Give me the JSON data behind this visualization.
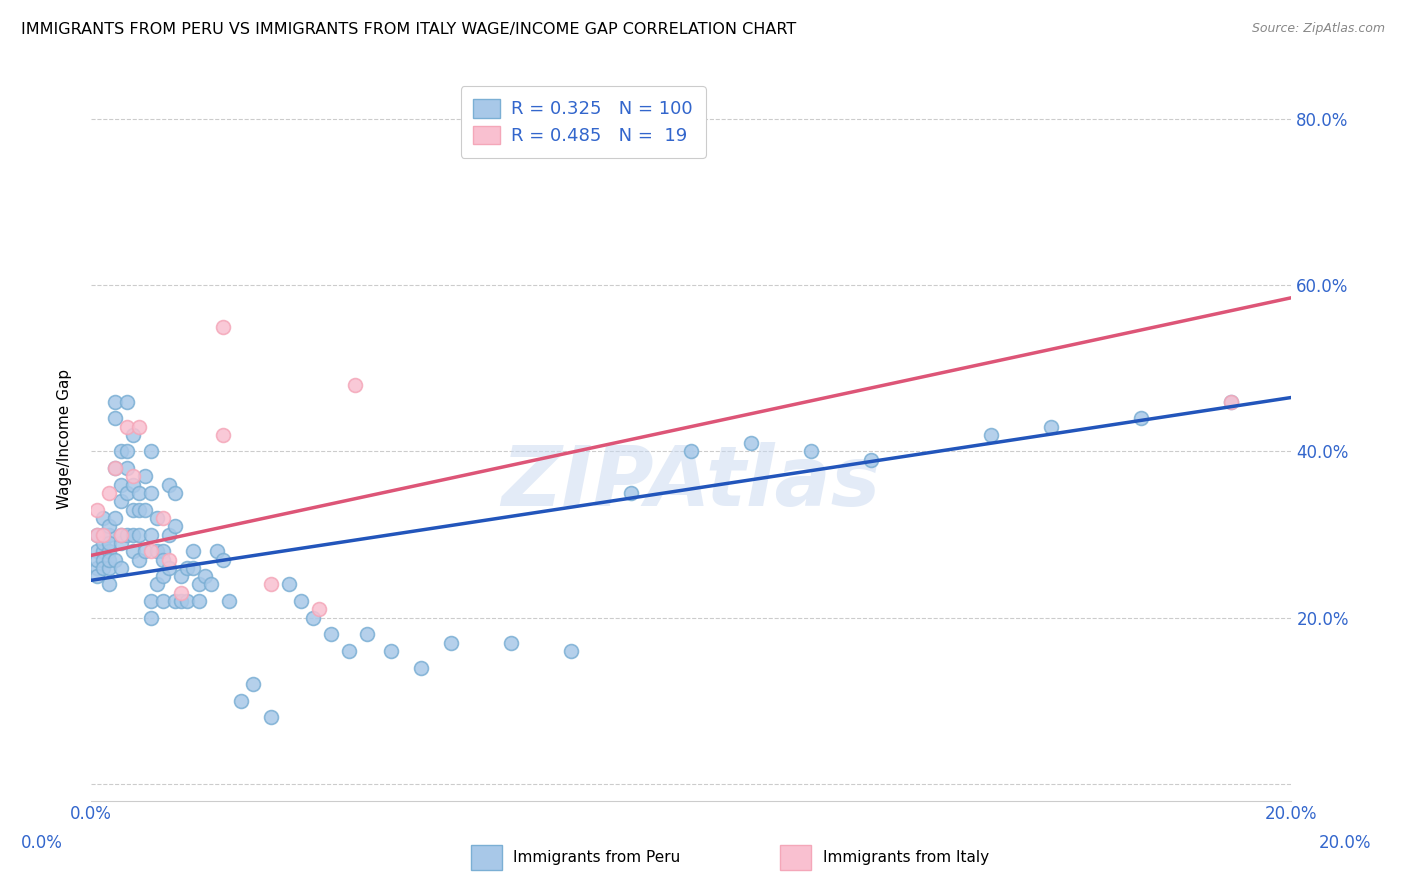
{
  "title": "IMMIGRANTS FROM PERU VS IMMIGRANTS FROM ITALY WAGE/INCOME GAP CORRELATION CHART",
  "source": "Source: ZipAtlas.com",
  "ylabel": "Wage/Income Gap",
  "xlim": [
    0.0,
    0.2
  ],
  "ylim": [
    -0.02,
    0.85
  ],
  "peru_color": "#a8c8e8",
  "peru_edge_color": "#7bafd4",
  "italy_color": "#f9c0d0",
  "italy_edge_color": "#f4a7b9",
  "peru_line_color": "#2255bb",
  "italy_line_color": "#dd5577",
  "axis_text_color": "#3366cc",
  "legend_text_color": "#3366cc",
  "peru_R": 0.325,
  "peru_N": 100,
  "italy_R": 0.485,
  "italy_N": 19,
  "watermark": "ZIPAtlas",
  "legend_label_peru": "Immigrants from Peru",
  "legend_label_italy": "Immigrants from Italy",
  "peru_intercept": 0.245,
  "peru_slope": 1.1,
  "italy_intercept": 0.275,
  "italy_slope": 1.55,
  "peru_x": [
    0.001,
    0.001,
    0.001,
    0.001,
    0.001,
    0.002,
    0.002,
    0.002,
    0.002,
    0.002,
    0.002,
    0.003,
    0.003,
    0.003,
    0.003,
    0.003,
    0.003,
    0.003,
    0.004,
    0.004,
    0.004,
    0.004,
    0.004,
    0.005,
    0.005,
    0.005,
    0.005,
    0.005,
    0.005,
    0.006,
    0.006,
    0.006,
    0.006,
    0.006,
    0.007,
    0.007,
    0.007,
    0.007,
    0.007,
    0.008,
    0.008,
    0.008,
    0.008,
    0.009,
    0.009,
    0.009,
    0.01,
    0.01,
    0.01,
    0.01,
    0.01,
    0.011,
    0.011,
    0.011,
    0.012,
    0.012,
    0.012,
    0.012,
    0.013,
    0.013,
    0.013,
    0.014,
    0.014,
    0.014,
    0.015,
    0.015,
    0.016,
    0.016,
    0.017,
    0.017,
    0.018,
    0.018,
    0.019,
    0.02,
    0.021,
    0.022,
    0.023,
    0.025,
    0.027,
    0.03,
    0.033,
    0.035,
    0.037,
    0.04,
    0.043,
    0.046,
    0.05,
    0.055,
    0.06,
    0.07,
    0.08,
    0.09,
    0.1,
    0.11,
    0.12,
    0.13,
    0.15,
    0.16,
    0.175,
    0.19
  ],
  "peru_y": [
    0.28,
    0.3,
    0.26,
    0.25,
    0.27,
    0.3,
    0.28,
    0.32,
    0.27,
    0.26,
    0.29,
    0.3,
    0.26,
    0.28,
    0.31,
    0.24,
    0.29,
    0.27,
    0.44,
    0.46,
    0.38,
    0.32,
    0.27,
    0.34,
    0.4,
    0.36,
    0.29,
    0.3,
    0.26,
    0.4,
    0.46,
    0.38,
    0.3,
    0.35,
    0.42,
    0.33,
    0.36,
    0.28,
    0.3,
    0.35,
    0.33,
    0.3,
    0.27,
    0.33,
    0.37,
    0.28,
    0.3,
    0.35,
    0.4,
    0.22,
    0.2,
    0.32,
    0.28,
    0.24,
    0.22,
    0.28,
    0.27,
    0.25,
    0.36,
    0.3,
    0.26,
    0.35,
    0.31,
    0.22,
    0.25,
    0.22,
    0.26,
    0.22,
    0.28,
    0.26,
    0.24,
    0.22,
    0.25,
    0.24,
    0.28,
    0.27,
    0.22,
    0.1,
    0.12,
    0.08,
    0.24,
    0.22,
    0.2,
    0.18,
    0.16,
    0.18,
    0.16,
    0.14,
    0.17,
    0.17,
    0.16,
    0.35,
    0.4,
    0.41,
    0.4,
    0.39,
    0.42,
    0.43,
    0.44,
    0.46
  ],
  "italy_x": [
    0.001,
    0.001,
    0.002,
    0.003,
    0.004,
    0.005,
    0.006,
    0.007,
    0.008,
    0.01,
    0.012,
    0.013,
    0.015,
    0.022,
    0.022,
    0.03,
    0.038,
    0.044,
    0.19
  ],
  "italy_y": [
    0.3,
    0.33,
    0.3,
    0.35,
    0.38,
    0.3,
    0.43,
    0.37,
    0.43,
    0.28,
    0.32,
    0.27,
    0.23,
    0.55,
    0.42,
    0.24,
    0.21,
    0.48,
    0.46
  ]
}
